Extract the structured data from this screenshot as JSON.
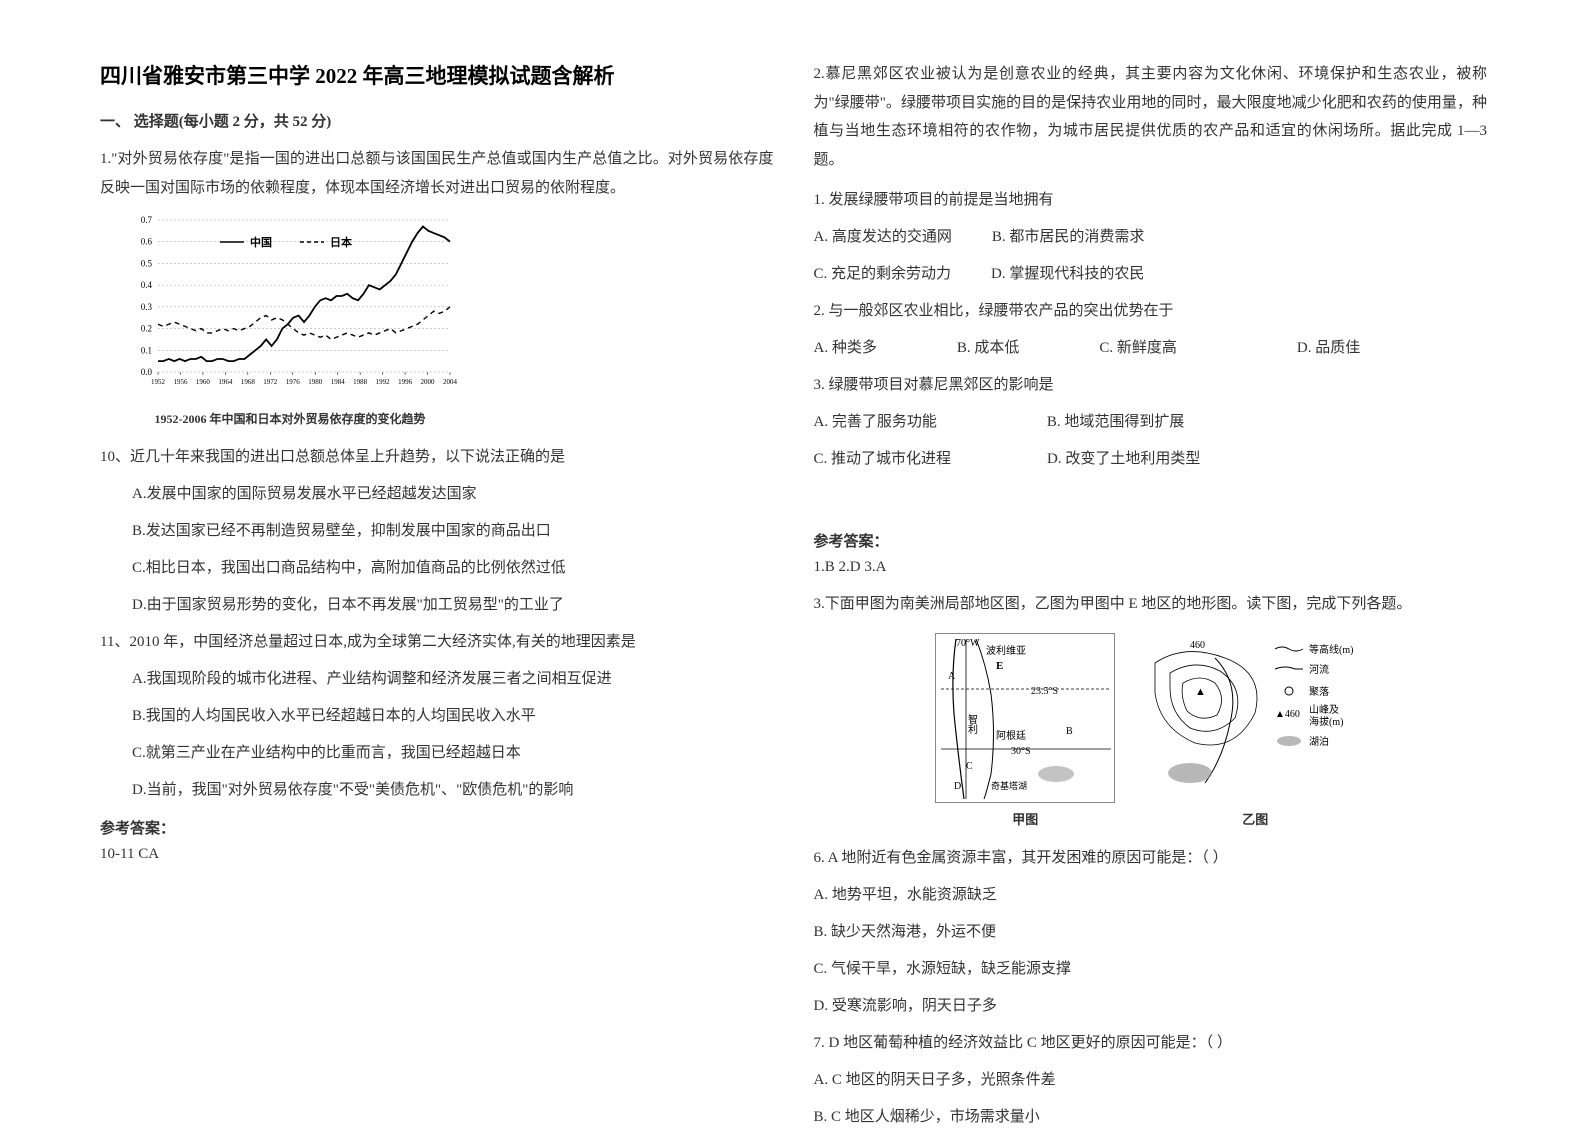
{
  "doc": {
    "title": "四川省雅安市第三中学 2022 年高三地理模拟试题含解析"
  },
  "section1": {
    "header": "一、 选择题(每小题 2 分，共 52 分)"
  },
  "q1": {
    "intro": "1.\"对外贸易依存度\"是指一国的进出口总额与该国国民生产总值或国内生产总值之比。对外贸易依存度反映一国对国际市场的依赖程度，体现本国经济增长对进出口贸易的依附程度。",
    "chart": {
      "type": "line",
      "ymin": 0.0,
      "ymax": 0.7,
      "ystep": 0.1,
      "ylabels": [
        "0.0",
        "0.1",
        "0.2",
        "0.3",
        "0.4",
        "0.5",
        "0.6",
        "0.7"
      ],
      "series": [
        {
          "name": "中国",
          "style": "solid",
          "color": "#000000",
          "points": [
            0.05,
            0.05,
            0.06,
            0.05,
            0.06,
            0.05,
            0.06,
            0.06,
            0.07,
            0.05,
            0.05,
            0.06,
            0.06,
            0.05,
            0.05,
            0.06,
            0.06,
            0.08,
            0.1,
            0.12,
            0.15,
            0.12,
            0.15,
            0.2,
            0.22,
            0.25,
            0.26,
            0.23,
            0.26,
            0.3,
            0.33,
            0.34,
            0.33,
            0.35,
            0.35,
            0.36,
            0.34,
            0.33,
            0.36,
            0.4,
            0.39,
            0.38,
            0.4,
            0.42,
            0.45,
            0.5,
            0.55,
            0.6,
            0.64,
            0.67,
            0.65,
            0.64,
            0.63,
            0.62,
            0.6
          ],
          "width": 1.8
        },
        {
          "name": "日本",
          "style": "dashed",
          "color": "#000000",
          "points": [
            0.22,
            0.21,
            0.22,
            0.23,
            0.22,
            0.21,
            0.2,
            0.19,
            0.2,
            0.18,
            0.18,
            0.19,
            0.2,
            0.19,
            0.2,
            0.19,
            0.2,
            0.21,
            0.23,
            0.25,
            0.26,
            0.24,
            0.25,
            0.24,
            0.22,
            0.2,
            0.18,
            0.17,
            0.18,
            0.17,
            0.16,
            0.17,
            0.15,
            0.16,
            0.17,
            0.18,
            0.17,
            0.16,
            0.17,
            0.18,
            0.17,
            0.18,
            0.19,
            0.2,
            0.18,
            0.19,
            0.2,
            0.21,
            0.22,
            0.24,
            0.26,
            0.28,
            0.27,
            0.28,
            0.3
          ],
          "width": 1.4
        }
      ],
      "grid_color": "#999999",
      "caption": "1952-2006 年中国和日本对外贸易依存度的变化趋势",
      "legend": [
        {
          "label": "中国",
          "dash": false
        },
        {
          "label": "日本",
          "dash": true
        }
      ]
    },
    "q10": {
      "stem": "10、近几十年来我国的进出口总额总体呈上升趋势，以下说法正确的是",
      "A": "A.发展中国家的国际贸易发展水平已经超越发达国家",
      "B": "B.发达国家已经不再制造贸易壁垒，抑制发展中国家的商品出口",
      "C": "C.相比日本，我国出口商品结构中，高附加值商品的比例依然过低",
      "D": "D.由于国家贸易形势的变化，日本不再发展\"加工贸易型\"的工业了"
    },
    "q11": {
      "stem": "11、2010 年，中国经济总量超过日本,成为全球第二大经济实体,有关的地理因素是",
      "A": "A.我国现阶段的城市化进程、产业结构调整和经济发展三者之间相互促进",
      "B": "B.我国的人均国民收入水平已经超越日本的人均国民收入水平",
      "C": "C.就第三产业在产业结构中的比重而言，我国已经超越日本",
      "D": "D.当前，我国\"对外贸易依存度\"不受\"美债危机\"、\"欧债危机\"的影响"
    },
    "answer_label": "参考答案：",
    "answer": "10-11 CA"
  },
  "q2": {
    "intro": "2.慕尼黑郊区农业被认为是创意农业的经典，其主要内容为文化休闲、环境保护和生态农业，被称为\"绿腰带\"。绿腰带项目实施的目的是保持农业用地的同时，最大限度地减少化肥和农药的使用量，种植与当地生态环境相符的农作物，为城市居民提供优质的农产品和适宜的休闲场所。据此完成 1—3 题。",
    "sub1": {
      "stem": "1. 发展绿腰带项目的前提是当地拥有",
      "A": "A. 高度发达的交通网",
      "B": "B. 都市居民的消费需求",
      "C": "C. 充足的剩余劳动力",
      "D": "D. 掌握现代科技的农民"
    },
    "sub2": {
      "stem": "2. 与一般郊区农业相比，绿腰带农产品的突出优势在于",
      "A": "A. 种类多",
      "B": "B. 成本低",
      "C": "C. 新鲜度高",
      "D": "D. 品质佳"
    },
    "sub3": {
      "stem": "3. 绿腰带项目对慕尼黑郊区的影响是",
      "A": "A. 完善了服务功能",
      "B": "B. 地域范围得到扩展",
      "C": "C. 推动了城市化进程",
      "D": "D. 改变了土地利用类型"
    },
    "answer_label": "参考答案：",
    "answer": "1.B    2.D      3.A"
  },
  "q3": {
    "intro": "3.下面甲图为南美洲局部地区图，乙图为甲图中 E 地区的地形图。读下图，完成下列各题。",
    "map_jia_caption": "甲图",
    "map_yi_caption": "乙图",
    "jia_labels": {
      "top": "70°W",
      "e": "E",
      "lat1": "23.5°S",
      "lat2": "30°S",
      "country1": "智利",
      "country2": "阿根廷",
      "city": "奇基塔湖",
      "label_top": "波利维亚",
      "a": "A",
      "b": "B",
      "c": "C",
      "d": "D"
    },
    "yi_labels": {
      "n460": "460",
      "legend": [
        {
          "label": "等高线(m)",
          "type": "contour"
        },
        {
          "label": "河流",
          "type": "river"
        },
        {
          "label": "聚落",
          "type": "settlement"
        },
        {
          "label": "山峰及海拔(m)",
          "type": "peak",
          "sample": "▲460"
        },
        {
          "label": "湖泊",
          "type": "lake"
        }
      ]
    },
    "q6": {
      "stem": "6. A 地附近有色金属资源丰富，其开发困难的原因可能是：（    ）",
      "A": "A. 地势平坦，水能资源缺乏",
      "B": "B. 缺少天然海港，外运不便",
      "C": "C. 气候干旱，水源短缺，缺乏能源支撑",
      "D": "D. 受寒流影响，阴天日子多"
    },
    "q7": {
      "stem": "7. D 地区葡萄种植的经济效益比 C 地区更好的原因可能是：（    ）",
      "A": "A. C 地区的阴天日子多，光照条件差",
      "B": "B. C 地区人烟稀少，市场需求量小"
    }
  }
}
